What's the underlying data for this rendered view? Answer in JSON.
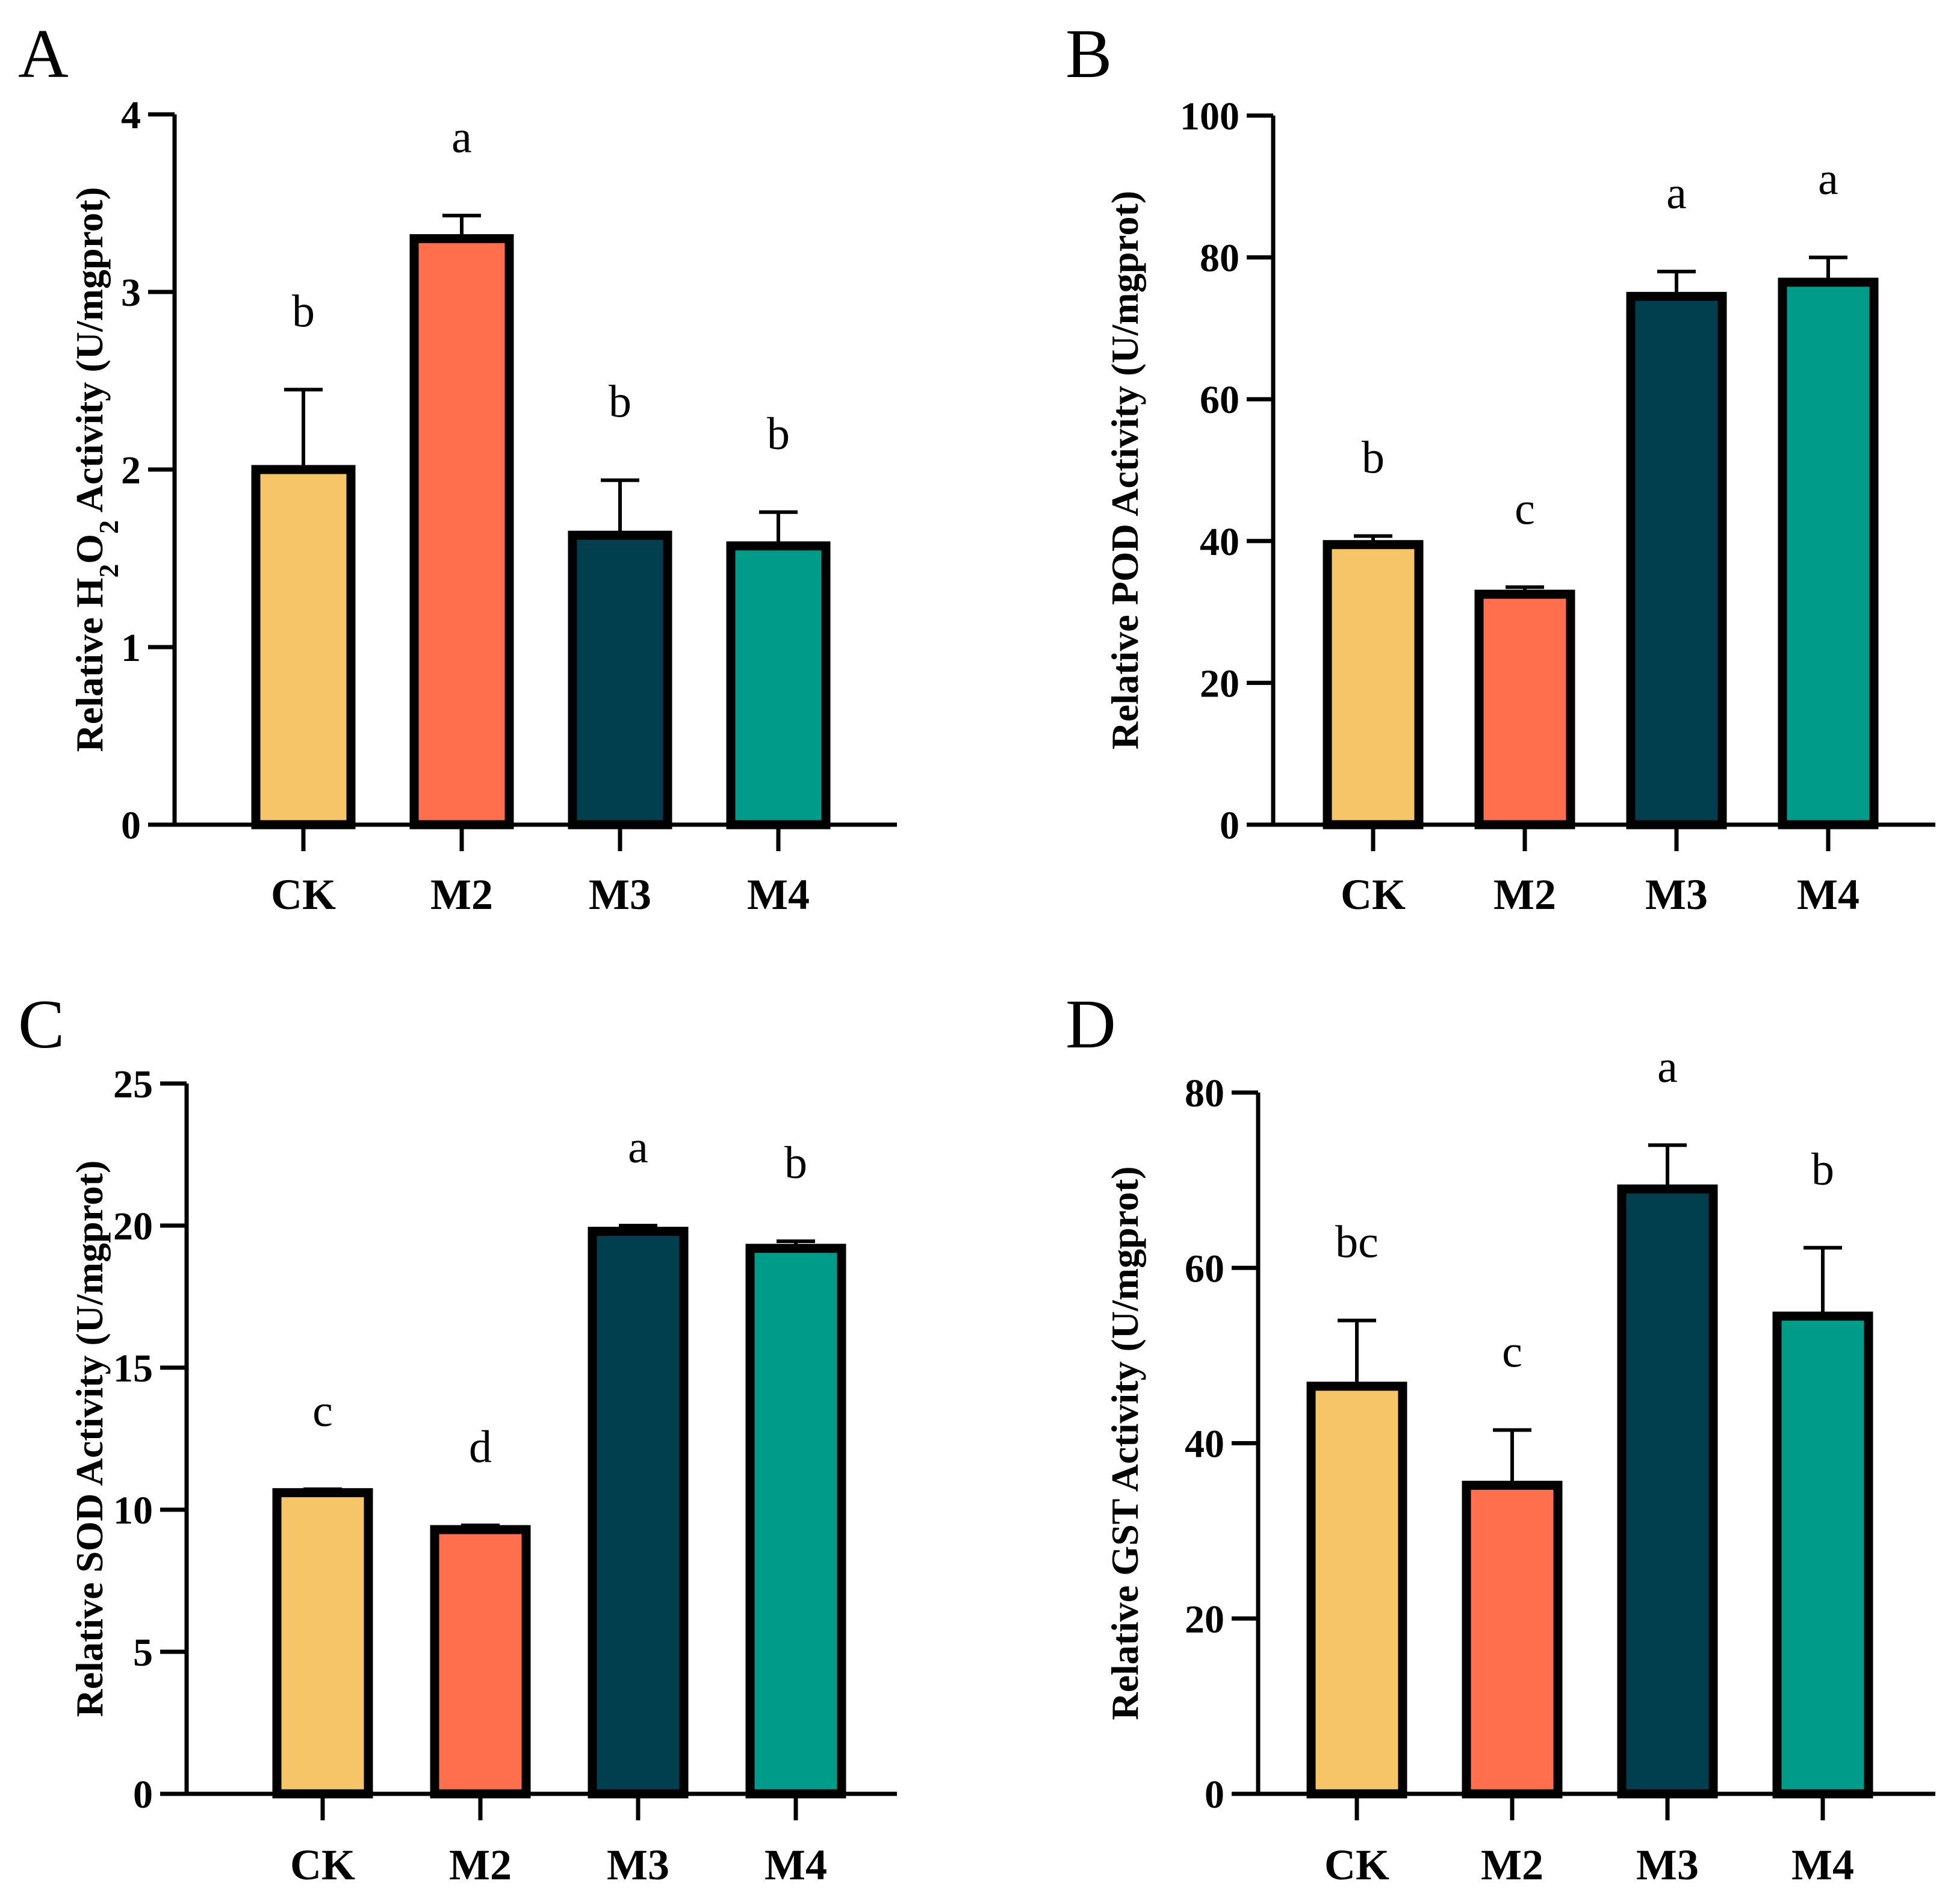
{
  "colors": {
    "CK": "#F5C567",
    "M2": "#FF6F4E",
    "M3": "#023F4E",
    "M4": "#009C8A",
    "outline": "#000000"
  },
  "chart_data": [
    {
      "type": "bar",
      "panel_label": "A",
      "categories": [
        "CK",
        "M2",
        "M3",
        "M4"
      ],
      "values": [
        2.0,
        3.3,
        1.63,
        1.57
      ],
      "errors": [
        0.45,
        0.13,
        0.31,
        0.19
      ],
      "significance": [
        "b",
        "a",
        "b",
        "b"
      ],
      "ylabel_parts": [
        {
          "text": "Relative H",
          "sub": false
        },
        {
          "text": "2",
          "sub": true
        },
        {
          "text": "O",
          "sub": false
        },
        {
          "text": "2",
          "sub": true
        },
        {
          "text": " Activity (U/mgprot)",
          "sub": false
        }
      ],
      "ylim": [
        0,
        4
      ],
      "yticks": [
        "0",
        "1",
        "2",
        "3",
        "4"
      ],
      "grid": false
    },
    {
      "type": "bar",
      "panel_label": "B",
      "categories": [
        "CK",
        "M2",
        "M3",
        "M4"
      ],
      "values": [
        39.5,
        32.5,
        74.5,
        76.5
      ],
      "errors": [
        1.2,
        1.0,
        3.5,
        3.5
      ],
      "significance": [
        "b",
        "c",
        "a",
        "a"
      ],
      "ylabel_parts": [
        {
          "text": "Relative POD Activity (U/mgprot)",
          "sub": false
        }
      ],
      "ylim": [
        0,
        100
      ],
      "yticks": [
        "0",
        "20",
        "40",
        "60",
        "80",
        "100"
      ],
      "grid": false
    },
    {
      "type": "bar",
      "panel_label": "C",
      "categories": [
        "CK",
        "M2",
        "M3",
        "M4"
      ],
      "values": [
        10.6,
        9.3,
        19.8,
        19.2
      ],
      "errors": [
        0.12,
        0.15,
        0.2,
        0.25
      ],
      "significance": [
        "c",
        "d",
        "a",
        "b"
      ],
      "ylabel_parts": [
        {
          "text": "Relative SOD Activity (U/mgprot)",
          "sub": false
        }
      ],
      "ylim": [
        0,
        25
      ],
      "yticks": [
        "0",
        "5",
        "10",
        "15",
        "20",
        "25"
      ],
      "grid": false
    },
    {
      "type": "bar",
      "panel_label": "D",
      "categories": [
        "CK",
        "M2",
        "M3",
        "M4"
      ],
      "values": [
        46.5,
        35.2,
        69.0,
        54.5
      ],
      "errors": [
        7.5,
        6.3,
        5.0,
        7.8
      ],
      "significance": [
        "bc",
        "c",
        "a",
        "b"
      ],
      "ylabel_parts": [
        {
          "text": "Relative GST Activity (U/mgprot)",
          "sub": false
        }
      ],
      "ylim": [
        0,
        80
      ],
      "yticks": [
        "0",
        "20",
        "40",
        "60",
        "80"
      ],
      "grid": false
    }
  ]
}
